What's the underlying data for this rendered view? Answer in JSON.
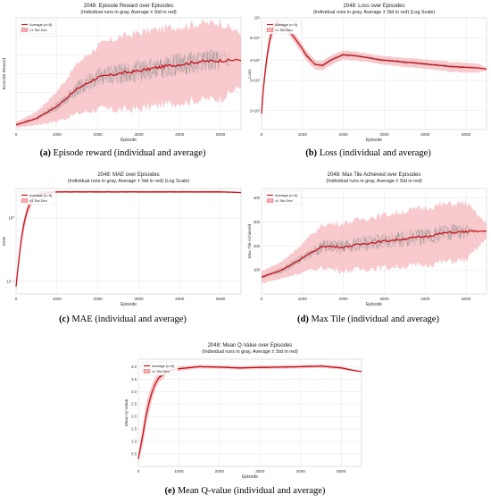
{
  "colors": {
    "average": "#c8141e",
    "band": "#f4aeb2",
    "runs": "#8a8a8a",
    "grid": "#e6e6e6"
  },
  "captions": [
    {
      "label": "(a)",
      "text": " Episode reward (individual and average)"
    },
    {
      "label": "(b)",
      "text": " Loss (individual and average)"
    },
    {
      "label": "(c)",
      "text": " MAE (individual and average)"
    },
    {
      "label": "(d)",
      "text": " Max Tile (individual and average)"
    },
    {
      "label": "(e)",
      "text": " Mean Q-value (individual and average)"
    }
  ],
  "chart_data": [
    {
      "type": "line",
      "title": "2048: Episode Reward over Episodes",
      "subtitle": "(Individual runs in gray, Average ± Std in red)",
      "xlabel": "Episode",
      "ylabel": "Episode Reward",
      "xlim": [
        0,
        5500
      ],
      "ylim": [
        0,
        6000
      ],
      "xticks": [
        0,
        1000,
        2000,
        3000,
        4000,
        5000
      ],
      "yticks": [],
      "legend": [
        "Average (n=5)",
        "±1 Std Dev"
      ],
      "legend_position": "top-left",
      "grid": true,
      "series": [
        {
          "name": "Average (n=5)",
          "x": [
            0,
            500,
            1000,
            1500,
            2000,
            2500,
            3000,
            3500,
            4000,
            4500,
            5000,
            5500
          ],
          "y": [
            250,
            600,
            1250,
            2200,
            2800,
            3000,
            3150,
            3350,
            3500,
            3650,
            3700,
            3750
          ],
          "std": [
            150,
            350,
            800,
            1350,
            1700,
            1950,
            2050,
            2050,
            2050,
            2050,
            2050,
            1400
          ]
        }
      ]
    },
    {
      "type": "line",
      "title": "2048: Loss over Episodes",
      "subtitle": "(Individual runs in gray, Average ± Std in red) (Log Scale)",
      "xlabel": "Episode",
      "ylabel": "Loss",
      "xlim": [
        0,
        5500
      ],
      "ylim": [
        150,
        1100
      ],
      "xticks": [
        0,
        1000,
        2000,
        3000,
        4000,
        5000
      ],
      "yticks_labels": [
        "10³",
        "6×10²",
        "4×10²",
        "3×10²",
        "2×10²"
      ],
      "legend": [
        "Average (n=5)",
        "±1 Std Dev"
      ],
      "legend_position": "top-left",
      "grid": true,
      "yscale": "log",
      "series": [
        {
          "name": "Average (n=5)",
          "x": [
            0,
            100,
            200,
            300,
            400,
            500,
            700,
            900,
            1100,
            1300,
            1500,
            1700,
            2000,
            2300,
            2600,
            2900,
            3200,
            3500,
            3800,
            4100,
            4400,
            4700,
            5000,
            5300,
            5500
          ],
          "y": [
            200,
            450,
            750,
            950,
            1000,
            960,
            850,
            700,
            560,
            480,
            470,
            520,
            570,
            560,
            540,
            520,
            510,
            500,
            490,
            480,
            470,
            460,
            455,
            450,
            440
          ],
          "std": [
            20,
            60,
            100,
            90,
            70,
            60,
            60,
            60,
            50,
            40,
            40,
            45,
            45,
            45,
            40,
            40,
            40,
            40,
            40,
            40,
            40,
            40,
            40,
            35,
            10
          ]
        }
      ]
    },
    {
      "type": "line",
      "title": "2048: MAE over Episodes",
      "subtitle": "(Individual runs in gray, Average ± Std in red) (Log Scale)",
      "xlabel": "Episode",
      "ylabel": "MAE",
      "xlim": [
        0,
        5500
      ],
      "ylim": [
        0.04,
        0.2
      ],
      "xticks": [
        0,
        1000,
        2000,
        3000,
        4000,
        5000
      ],
      "yticks_labels": [
        "10⁰",
        "10⁻¹"
      ],
      "legend": [
        "Average (n=5)",
        "±1 Std Dev"
      ],
      "legend_position": "top-left",
      "grid": true,
      "yscale": "log",
      "series": [
        {
          "name": "Average (n=5)",
          "x": [
            0,
            50,
            100,
            200,
            300,
            400,
            500,
            600,
            800,
            1000,
            2000,
            3000,
            4000,
            5000,
            5500
          ],
          "y": [
            0.045,
            0.06,
            0.08,
            0.12,
            0.15,
            0.17,
            0.18,
            0.185,
            0.188,
            0.19,
            0.19,
            0.19,
            0.19,
            0.19,
            0.188
          ],
          "std": [
            0.003,
            0.005,
            0.008,
            0.012,
            0.013,
            0.01,
            0.006,
            0.004,
            0.003,
            0.003,
            0.003,
            0.003,
            0.003,
            0.003,
            0.002
          ]
        }
      ]
    },
    {
      "type": "line",
      "title": "2048: Max Tile Achieved over Episodes",
      "subtitle": "(Individual runs in gray, Average ± Std in red)",
      "xlabel": "Episode",
      "ylabel": "Max Tile Achieved",
      "xlim": [
        0,
        5500
      ],
      "ylim": [
        0,
        440
      ],
      "xticks": [
        0,
        1000,
        2000,
        3000,
        4000,
        5000
      ],
      "yticks": [
        100,
        200,
        300,
        400
      ],
      "legend": [
        "Average (n=5)",
        "±1 Std Dev"
      ],
      "legend_position": "top-left",
      "grid": true,
      "series": [
        {
          "name": "Average (n=5)",
          "x": [
            0,
            500,
            1000,
            1500,
            2000,
            2500,
            3000,
            3500,
            4000,
            4500,
            5000,
            5500
          ],
          "y": [
            70,
            100,
            150,
            200,
            195,
            210,
            220,
            230,
            240,
            255,
            260,
            262
          ],
          "std": [
            25,
            35,
            60,
            90,
            100,
            105,
            110,
            115,
            120,
            120,
            120,
            30
          ]
        }
      ]
    },
    {
      "type": "line",
      "title": "2048: Mean Q-Value over Episodes",
      "subtitle": "(Individual runs in gray, Average ± Std in red)",
      "xlabel": "Episode",
      "ylabel": "Mean Q-Value",
      "xlim": [
        0,
        5500
      ],
      "ylim": [
        0,
        4.3
      ],
      "xticks": [
        0,
        1000,
        2000,
        3000,
        4000,
        5000
      ],
      "yticks": [
        0.5,
        1.0,
        1.5,
        2.0,
        2.5,
        3.0,
        3.5,
        4.0
      ],
      "legend": [
        "Average (n=5)",
        "±1 Std Dev"
      ],
      "legend_position": "top-left",
      "grid": true,
      "series": [
        {
          "name": "Average (n=5)",
          "x": [
            0,
            100,
            200,
            300,
            400,
            500,
            700,
            900,
            1200,
            1500,
            2000,
            2500,
            3000,
            3500,
            4000,
            4500,
            5000,
            5300,
            5500
          ],
          "y": [
            0.3,
            1.2,
            2.1,
            2.8,
            3.25,
            3.55,
            3.8,
            3.9,
            3.95,
            4.0,
            3.98,
            3.95,
            3.97,
            3.98,
            4.0,
            4.02,
            3.95,
            3.85,
            3.8
          ],
          "std": [
            0.1,
            0.4,
            0.45,
            0.35,
            0.25,
            0.2,
            0.12,
            0.1,
            0.08,
            0.07,
            0.07,
            0.07,
            0.07,
            0.07,
            0.07,
            0.07,
            0.07,
            0.04,
            0.02
          ]
        }
      ]
    }
  ]
}
